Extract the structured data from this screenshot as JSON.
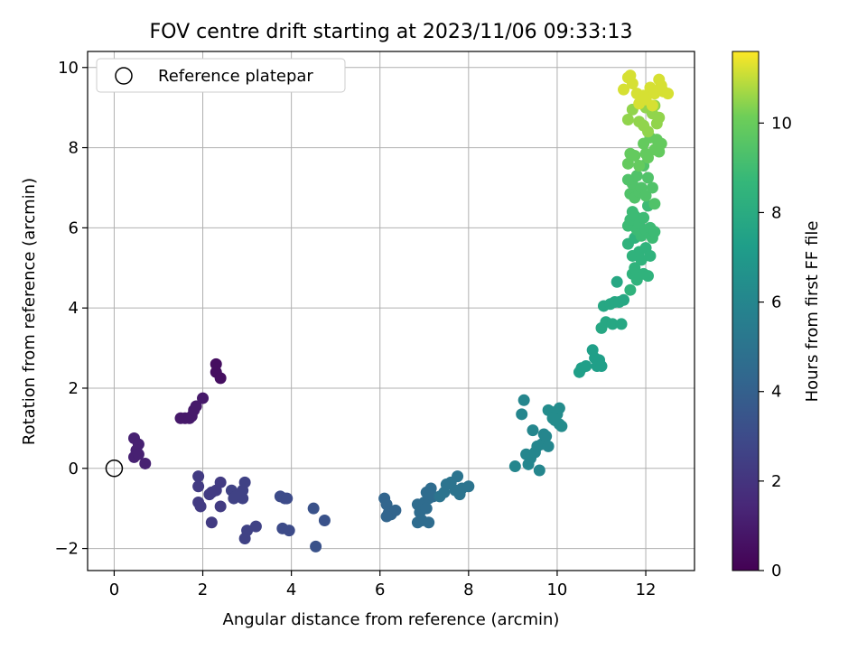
{
  "chart_data": {
    "type": "scatter",
    "title": "FOV centre drift starting at 2023/11/06 09:33:13",
    "xlabel": "Angular distance from reference (arcmin)",
    "ylabel": "Rotation from reference (arcmin)",
    "xlim": [
      -0.6,
      13.1
    ],
    "ylim": [
      -2.55,
      10.4
    ],
    "xticks": [
      "0",
      "2",
      "4",
      "6",
      "8",
      "10",
      "12"
    ],
    "yticks": [
      "−2",
      "0",
      "2",
      "4",
      "6",
      "8",
      "10"
    ],
    "grid": true,
    "legend": {
      "placement": "top-left",
      "entries": [
        "Reference platepar"
      ]
    },
    "reference_point": {
      "x": 0,
      "y": 0
    },
    "colorbar": {
      "label": "Hours from first FF file",
      "min": 0,
      "max": 11.6,
      "ticks": [
        "0",
        "2",
        "4",
        "6",
        "8",
        "10"
      ],
      "colormap": "viridis"
    },
    "points": [
      {
        "x": 0.45,
        "y": 0.75,
        "h": 1.2
      },
      {
        "x": 0.55,
        "y": 0.6,
        "h": 1.2
      },
      {
        "x": 0.5,
        "y": 0.45,
        "h": 1.2
      },
      {
        "x": 0.45,
        "y": 0.28,
        "h": 1.2
      },
      {
        "x": 0.55,
        "y": 0.35,
        "h": 1.2
      },
      {
        "x": 0.7,
        "y": 0.12,
        "h": 1.2
      },
      {
        "x": 1.5,
        "y": 1.25,
        "h": 0.9
      },
      {
        "x": 1.6,
        "y": 1.25,
        "h": 0.9
      },
      {
        "x": 1.7,
        "y": 1.25,
        "h": 0.9
      },
      {
        "x": 1.75,
        "y": 1.3,
        "h": 0.9
      },
      {
        "x": 1.8,
        "y": 1.45,
        "h": 0.9
      },
      {
        "x": 1.85,
        "y": 1.55,
        "h": 0.9
      },
      {
        "x": 2.0,
        "y": 1.75,
        "h": 0.9
      },
      {
        "x": 2.3,
        "y": 2.6,
        "h": 0.5
      },
      {
        "x": 2.3,
        "y": 2.4,
        "h": 0.5
      },
      {
        "x": 2.4,
        "y": 2.25,
        "h": 0.5
      },
      {
        "x": 1.9,
        "y": -0.2,
        "h": 2.3
      },
      {
        "x": 1.9,
        "y": -0.45,
        "h": 2.3
      },
      {
        "x": 1.9,
        "y": -0.85,
        "h": 2.3
      },
      {
        "x": 1.95,
        "y": -0.95,
        "h": 2.3
      },
      {
        "x": 2.2,
        "y": -0.6,
        "h": 2.3
      },
      {
        "x": 2.15,
        "y": -0.65,
        "h": 2.3
      },
      {
        "x": 2.3,
        "y": -0.55,
        "h": 2.3
      },
      {
        "x": 2.4,
        "y": -0.35,
        "h": 2.3
      },
      {
        "x": 2.2,
        "y": -1.35,
        "h": 2.3
      },
      {
        "x": 2.4,
        "y": -0.95,
        "h": 2.3
      },
      {
        "x": 2.65,
        "y": -0.55,
        "h": 2.6
      },
      {
        "x": 2.7,
        "y": -0.75,
        "h": 2.6
      },
      {
        "x": 2.75,
        "y": -0.7,
        "h": 2.6
      },
      {
        "x": 2.9,
        "y": -0.75,
        "h": 2.6
      },
      {
        "x": 2.9,
        "y": -0.55,
        "h": 2.6
      },
      {
        "x": 2.95,
        "y": -0.35,
        "h": 2.6
      },
      {
        "x": 3.0,
        "y": -1.55,
        "h": 2.6
      },
      {
        "x": 2.95,
        "y": -1.75,
        "h": 2.6
      },
      {
        "x": 3.2,
        "y": -1.45,
        "h": 2.6
      },
      {
        "x": 3.75,
        "y": -0.7,
        "h": 3.0
      },
      {
        "x": 3.85,
        "y": -0.75,
        "h": 3.0
      },
      {
        "x": 3.9,
        "y": -0.75,
        "h": 3.0
      },
      {
        "x": 3.8,
        "y": -1.5,
        "h": 3.0
      },
      {
        "x": 3.95,
        "y": -1.55,
        "h": 3.0
      },
      {
        "x": 4.5,
        "y": -1.0,
        "h": 3.3
      },
      {
        "x": 4.75,
        "y": -1.3,
        "h": 3.3
      },
      {
        "x": 4.55,
        "y": -1.95,
        "h": 3.3
      },
      {
        "x": 6.1,
        "y": -0.75,
        "h": 4.2
      },
      {
        "x": 6.15,
        "y": -0.9,
        "h": 4.2
      },
      {
        "x": 6.2,
        "y": -1.1,
        "h": 4.2
      },
      {
        "x": 6.25,
        "y": -1.15,
        "h": 4.2
      },
      {
        "x": 6.35,
        "y": -1.05,
        "h": 4.2
      },
      {
        "x": 6.15,
        "y": -1.2,
        "h": 4.2
      },
      {
        "x": 6.85,
        "y": -0.9,
        "h": 4.6
      },
      {
        "x": 6.9,
        "y": -1.1,
        "h": 4.6
      },
      {
        "x": 6.95,
        "y": -1.3,
        "h": 4.6
      },
      {
        "x": 6.85,
        "y": -1.35,
        "h": 4.6
      },
      {
        "x": 7.0,
        "y": -0.85,
        "h": 4.6
      },
      {
        "x": 7.05,
        "y": -0.6,
        "h": 4.6
      },
      {
        "x": 7.1,
        "y": -0.75,
        "h": 4.6
      },
      {
        "x": 7.15,
        "y": -0.5,
        "h": 4.6
      },
      {
        "x": 7.05,
        "y": -1.0,
        "h": 4.6
      },
      {
        "x": 7.1,
        "y": -1.35,
        "h": 4.6
      },
      {
        "x": 7.2,
        "y": -0.7,
        "h": 4.6
      },
      {
        "x": 7.35,
        "y": -0.7,
        "h": 5.0
      },
      {
        "x": 7.45,
        "y": -0.6,
        "h": 5.0
      },
      {
        "x": 7.5,
        "y": -0.4,
        "h": 5.0
      },
      {
        "x": 7.6,
        "y": -0.35,
        "h": 5.0
      },
      {
        "x": 7.7,
        "y": -0.55,
        "h": 5.0
      },
      {
        "x": 7.75,
        "y": -0.2,
        "h": 5.0
      },
      {
        "x": 7.8,
        "y": -0.65,
        "h": 5.0
      },
      {
        "x": 7.85,
        "y": -0.5,
        "h": 5.0
      },
      {
        "x": 8.0,
        "y": -0.45,
        "h": 5.0
      },
      {
        "x": 9.05,
        "y": 0.05,
        "h": 6.0
      },
      {
        "x": 9.2,
        "y": 1.35,
        "h": 6.0
      },
      {
        "x": 9.25,
        "y": 1.7,
        "h": 6.0
      },
      {
        "x": 9.3,
        "y": 0.35,
        "h": 6.0
      },
      {
        "x": 9.35,
        "y": 0.1,
        "h": 6.0
      },
      {
        "x": 9.4,
        "y": 0.25,
        "h": 6.0
      },
      {
        "x": 9.45,
        "y": 0.95,
        "h": 6.0
      },
      {
        "x": 9.5,
        "y": 0.4,
        "h": 6.0
      },
      {
        "x": 9.55,
        "y": 0.55,
        "h": 6.0
      },
      {
        "x": 9.6,
        "y": -0.05,
        "h": 6.0
      },
      {
        "x": 9.65,
        "y": 0.6,
        "h": 6.0
      },
      {
        "x": 9.7,
        "y": 0.85,
        "h": 6.0
      },
      {
        "x": 9.75,
        "y": 0.8,
        "h": 6.0
      },
      {
        "x": 9.8,
        "y": 0.55,
        "h": 6.0
      },
      {
        "x": 9.8,
        "y": 1.45,
        "h": 6.3
      },
      {
        "x": 9.9,
        "y": 1.4,
        "h": 6.3
      },
      {
        "x": 9.95,
        "y": 1.2,
        "h": 6.3
      },
      {
        "x": 10.0,
        "y": 1.35,
        "h": 6.3
      },
      {
        "x": 10.05,
        "y": 1.5,
        "h": 6.3
      },
      {
        "x": 10.05,
        "y": 1.1,
        "h": 6.3
      },
      {
        "x": 10.1,
        "y": 1.05,
        "h": 6.3
      },
      {
        "x": 9.9,
        "y": 1.25,
        "h": 6.3
      },
      {
        "x": 10.5,
        "y": 2.4,
        "h": 7.3
      },
      {
        "x": 10.55,
        "y": 2.5,
        "h": 7.3
      },
      {
        "x": 10.65,
        "y": 2.55,
        "h": 7.3
      },
      {
        "x": 10.8,
        "y": 2.95,
        "h": 7.3
      },
      {
        "x": 10.85,
        "y": 2.75,
        "h": 7.3
      },
      {
        "x": 10.9,
        "y": 2.55,
        "h": 7.3
      },
      {
        "x": 10.95,
        "y": 2.7,
        "h": 7.3
      },
      {
        "x": 11.0,
        "y": 2.55,
        "h": 7.3
      },
      {
        "x": 11.0,
        "y": 3.5,
        "h": 7.8
      },
      {
        "x": 11.1,
        "y": 3.65,
        "h": 7.8
      },
      {
        "x": 11.05,
        "y": 4.05,
        "h": 7.8
      },
      {
        "x": 11.2,
        "y": 4.1,
        "h": 7.8
      },
      {
        "x": 11.25,
        "y": 3.6,
        "h": 7.8
      },
      {
        "x": 11.3,
        "y": 4.15,
        "h": 7.8
      },
      {
        "x": 11.35,
        "y": 4.65,
        "h": 7.8
      },
      {
        "x": 11.4,
        "y": 4.15,
        "h": 7.8
      },
      {
        "x": 11.45,
        "y": 3.6,
        "h": 7.8
      },
      {
        "x": 11.5,
        "y": 4.2,
        "h": 7.8
      },
      {
        "x": 11.65,
        "y": 4.45,
        "h": 8.4
      },
      {
        "x": 11.7,
        "y": 4.85,
        "h": 8.4
      },
      {
        "x": 11.75,
        "y": 5.0,
        "h": 8.4
      },
      {
        "x": 11.6,
        "y": 5.6,
        "h": 8.4
      },
      {
        "x": 11.7,
        "y": 5.3,
        "h": 8.4
      },
      {
        "x": 11.8,
        "y": 4.7,
        "h": 8.4
      },
      {
        "x": 11.85,
        "y": 5.4,
        "h": 8.4
      },
      {
        "x": 11.9,
        "y": 5.2,
        "h": 8.4
      },
      {
        "x": 11.95,
        "y": 4.85,
        "h": 8.4
      },
      {
        "x": 12.0,
        "y": 5.5,
        "h": 8.4
      },
      {
        "x": 12.05,
        "y": 4.8,
        "h": 8.4
      },
      {
        "x": 12.1,
        "y": 5.3,
        "h": 8.4
      },
      {
        "x": 11.75,
        "y": 5.75,
        "h": 8.4
      },
      {
        "x": 11.6,
        "y": 6.05,
        "h": 8.9
      },
      {
        "x": 11.65,
        "y": 6.2,
        "h": 8.9
      },
      {
        "x": 11.7,
        "y": 6.4,
        "h": 8.9
      },
      {
        "x": 11.75,
        "y": 6.3,
        "h": 8.9
      },
      {
        "x": 11.8,
        "y": 5.95,
        "h": 8.9
      },
      {
        "x": 11.85,
        "y": 6.1,
        "h": 8.9
      },
      {
        "x": 11.9,
        "y": 5.8,
        "h": 8.9
      },
      {
        "x": 11.95,
        "y": 6.25,
        "h": 8.9
      },
      {
        "x": 12.0,
        "y": 5.95,
        "h": 8.9
      },
      {
        "x": 12.05,
        "y": 6.55,
        "h": 8.9
      },
      {
        "x": 12.1,
        "y": 6.0,
        "h": 8.9
      },
      {
        "x": 12.15,
        "y": 5.75,
        "h": 8.9
      },
      {
        "x": 12.2,
        "y": 5.9,
        "h": 8.9
      },
      {
        "x": 11.65,
        "y": 6.85,
        "h": 9.4
      },
      {
        "x": 11.7,
        "y": 7.1,
        "h": 9.4
      },
      {
        "x": 11.75,
        "y": 6.75,
        "h": 9.4
      },
      {
        "x": 11.8,
        "y": 7.3,
        "h": 9.4
      },
      {
        "x": 11.85,
        "y": 6.9,
        "h": 9.4
      },
      {
        "x": 11.9,
        "y": 7.0,
        "h": 9.4
      },
      {
        "x": 11.95,
        "y": 7.55,
        "h": 9.4
      },
      {
        "x": 12.0,
        "y": 6.8,
        "h": 9.4
      },
      {
        "x": 12.05,
        "y": 7.25,
        "h": 9.4
      },
      {
        "x": 12.15,
        "y": 7.0,
        "h": 9.4
      },
      {
        "x": 12.2,
        "y": 6.6,
        "h": 9.4
      },
      {
        "x": 11.6,
        "y": 7.2,
        "h": 9.4
      },
      {
        "x": 11.6,
        "y": 7.6,
        "h": 9.9
      },
      {
        "x": 11.65,
        "y": 7.85,
        "h": 9.9
      },
      {
        "x": 11.75,
        "y": 7.8,
        "h": 9.9
      },
      {
        "x": 11.85,
        "y": 7.55,
        "h": 9.9
      },
      {
        "x": 11.95,
        "y": 8.1,
        "h": 9.9
      },
      {
        "x": 12.0,
        "y": 7.85,
        "h": 9.9
      },
      {
        "x": 12.05,
        "y": 7.75,
        "h": 9.9
      },
      {
        "x": 12.1,
        "y": 8.25,
        "h": 9.9
      },
      {
        "x": 12.2,
        "y": 7.95,
        "h": 9.9
      },
      {
        "x": 12.25,
        "y": 8.2,
        "h": 9.9
      },
      {
        "x": 12.3,
        "y": 7.9,
        "h": 9.9
      },
      {
        "x": 12.35,
        "y": 8.1,
        "h": 9.9
      },
      {
        "x": 11.6,
        "y": 8.7,
        "h": 10.5
      },
      {
        "x": 11.7,
        "y": 8.95,
        "h": 10.5
      },
      {
        "x": 11.85,
        "y": 8.65,
        "h": 10.5
      },
      {
        "x": 11.95,
        "y": 8.55,
        "h": 10.5
      },
      {
        "x": 12.0,
        "y": 9.0,
        "h": 10.5
      },
      {
        "x": 12.05,
        "y": 8.4,
        "h": 10.5
      },
      {
        "x": 12.15,
        "y": 8.85,
        "h": 10.5
      },
      {
        "x": 12.2,
        "y": 9.05,
        "h": 10.5
      },
      {
        "x": 12.25,
        "y": 8.6,
        "h": 10.5
      },
      {
        "x": 12.3,
        "y": 8.75,
        "h": 10.5
      },
      {
        "x": 11.5,
        "y": 9.45,
        "h": 11.2
      },
      {
        "x": 11.6,
        "y": 9.75,
        "h": 11.2
      },
      {
        "x": 11.65,
        "y": 9.8,
        "h": 11.2
      },
      {
        "x": 11.7,
        "y": 9.6,
        "h": 11.2
      },
      {
        "x": 11.8,
        "y": 9.35,
        "h": 11.2
      },
      {
        "x": 11.85,
        "y": 9.1,
        "h": 11.2
      },
      {
        "x": 11.95,
        "y": 9.3,
        "h": 11.2
      },
      {
        "x": 12.0,
        "y": 9.2,
        "h": 11.2
      },
      {
        "x": 12.1,
        "y": 9.5,
        "h": 11.2
      },
      {
        "x": 12.15,
        "y": 9.05,
        "h": 11.2
      },
      {
        "x": 12.2,
        "y": 9.35,
        "h": 11.2
      },
      {
        "x": 12.3,
        "y": 9.7,
        "h": 11.2
      },
      {
        "x": 12.35,
        "y": 9.55,
        "h": 11.2
      },
      {
        "x": 12.4,
        "y": 9.4,
        "h": 11.2
      },
      {
        "x": 12.5,
        "y": 9.35,
        "h": 11.2
      }
    ]
  }
}
